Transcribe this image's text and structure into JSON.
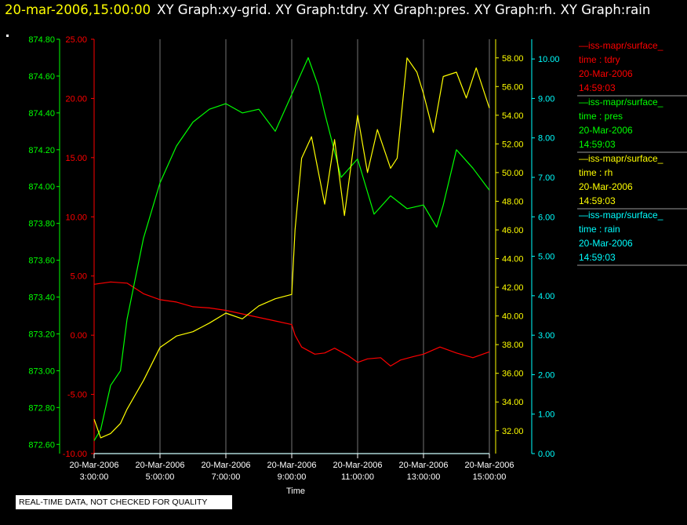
{
  "header": {
    "time": "20-mar-2006,15:00:00",
    "graphs": "XY Graph:xy-grid.  XY Graph:tdry.  XY Graph:pres.  XY Graph:rh.  XY Graph:rain"
  },
  "footer": {
    "notice": "REAL-TIME DATA, NOT CHECKED FOR QUALITY"
  },
  "colors": {
    "tdry": "#ff0000",
    "pres": "#00ff00",
    "rh": "#ffff00",
    "rain": "#00ffff",
    "grid": "#ffffff",
    "background": "#000000"
  },
  "chart_data": {
    "type": "line",
    "xlabel": "Time",
    "x_ticks": [
      {
        "date": "20-Mar-2006",
        "time": "3:00:00"
      },
      {
        "date": "20-Mar-2006",
        "time": "5:00:00"
      },
      {
        "date": "20-Mar-2006",
        "time": "7:00:00"
      },
      {
        "date": "20-Mar-2006",
        "time": "9:00:00"
      },
      {
        "date": "20-Mar-2006",
        "time": "11:00:00"
      },
      {
        "date": "20-Mar-2006",
        "time": "13:00:00"
      },
      {
        "date": "20-Mar-2006",
        "time": "15:00:00"
      }
    ],
    "xlim": [
      3.0,
      15.0
    ],
    "grid": true,
    "legend_position": "right",
    "axes": {
      "pres": {
        "ylim": [
          872.55,
          874.8
        ],
        "ticks": [
          "872.60",
          "872.80",
          "873.00",
          "873.20",
          "873.40",
          "873.60",
          "873.80",
          "874.00",
          "874.20",
          "874.40",
          "874.60",
          "874.80"
        ]
      },
      "tdry": {
        "ylim": [
          -10.0,
          25.0
        ],
        "ticks": [
          "-10.00",
          "-5.00",
          "0.00",
          "5.00",
          "10.00",
          "15.00",
          "20.00",
          "25.00"
        ]
      },
      "rh": {
        "ylim": [
          30.4,
          59.3
        ],
        "ticks": [
          "32.00",
          "34.00",
          "36.00",
          "38.00",
          "40.00",
          "42.00",
          "44.00",
          "46.00",
          "48.00",
          "50.00",
          "52.00",
          "54.00",
          "56.00",
          "58.00"
        ]
      },
      "rain": {
        "ylim": [
          0.0,
          10.5
        ],
        "ticks": [
          "0.00",
          "1.00",
          "2.00",
          "3.00",
          "4.00",
          "5.00",
          "6.00",
          "7.00",
          "8.00",
          "9.00",
          "10.00"
        ]
      }
    },
    "legend": [
      {
        "series": "tdry",
        "label": "—iss-mapr/surface_",
        "x_label": "time : tdry",
        "date": "20-Mar-2006",
        "time": "14:59:03"
      },
      {
        "series": "pres",
        "label": "—iss-mapr/surface_",
        "x_label": "time : pres",
        "date": "20-Mar-2006",
        "time": "14:59:03"
      },
      {
        "series": "rh",
        "label": "—iss-mapr/surface_",
        "x_label": "time : rh",
        "date": "20-Mar-2006",
        "time": "14:59:03"
      },
      {
        "series": "rain",
        "label": "—iss-mapr/surface_",
        "x_label": "time : rain",
        "date": "20-Mar-2006",
        "time": "14:59:03"
      }
    ],
    "series": [
      {
        "key": "tdry",
        "x": [
          3.0,
          3.5,
          4.0,
          4.5,
          5.0,
          5.5,
          6.0,
          6.5,
          7.0,
          7.5,
          8.0,
          8.5,
          9.0,
          9.1,
          9.3,
          9.7,
          10.0,
          10.3,
          10.7,
          11.0,
          11.3,
          11.7,
          12.0,
          12.3,
          12.7,
          13.0,
          13.5,
          14.0,
          14.5,
          15.0
        ],
        "values": [
          4.3,
          4.5,
          4.4,
          3.5,
          3.0,
          2.8,
          2.4,
          2.3,
          2.1,
          1.8,
          1.5,
          1.2,
          0.9,
          0.0,
          -1.0,
          -1.6,
          -1.5,
          -1.1,
          -1.7,
          -2.3,
          -2.0,
          -1.9,
          -2.6,
          -2.1,
          -1.8,
          -1.6,
          -1.0,
          -1.5,
          -1.9,
          -1.4
        ]
      },
      {
        "key": "pres",
        "x": [
          3.0,
          3.2,
          3.5,
          3.8,
          4.0,
          4.5,
          5.0,
          5.5,
          6.0,
          6.5,
          7.0,
          7.5,
          8.0,
          8.5,
          9.0,
          9.5,
          9.8,
          10.0,
          10.5,
          11.0,
          11.5,
          12.0,
          12.5,
          13.0,
          13.4,
          13.6,
          14.0,
          14.5,
          15.0
        ],
        "values": [
          872.62,
          872.68,
          872.92,
          873.0,
          873.28,
          873.72,
          874.02,
          874.22,
          874.35,
          874.42,
          874.45,
          874.4,
          874.42,
          874.3,
          874.5,
          874.7,
          874.55,
          874.4,
          874.05,
          874.15,
          873.85,
          873.95,
          873.88,
          873.9,
          873.78,
          873.9,
          874.2,
          874.1,
          873.98
        ]
      },
      {
        "key": "rh",
        "x": [
          3.0,
          3.2,
          3.5,
          3.8,
          4.0,
          4.5,
          5.0,
          5.5,
          6.0,
          6.5,
          7.0,
          7.5,
          8.0,
          8.5,
          9.0,
          9.1,
          9.3,
          9.6,
          10.0,
          10.3,
          10.6,
          11.0,
          11.3,
          11.6,
          12.0,
          12.2,
          12.5,
          12.8,
          13.0,
          13.3,
          13.6,
          14.0,
          14.3,
          14.6,
          15.0
        ],
        "values": [
          32.8,
          31.5,
          31.8,
          32.5,
          33.5,
          35.5,
          37.8,
          38.6,
          38.9,
          39.5,
          40.2,
          39.8,
          40.7,
          41.2,
          41.5,
          46.0,
          51.0,
          52.5,
          47.8,
          52.3,
          47.0,
          54.0,
          50.0,
          53.0,
          50.3,
          51.0,
          58.0,
          57.0,
          55.5,
          52.8,
          56.7,
          57.0,
          55.2,
          57.3,
          54.5
        ]
      },
      {
        "key": "rain",
        "x": [
          3.0,
          15.0
        ],
        "values": [
          0.0,
          0.0
        ]
      }
    ]
  }
}
